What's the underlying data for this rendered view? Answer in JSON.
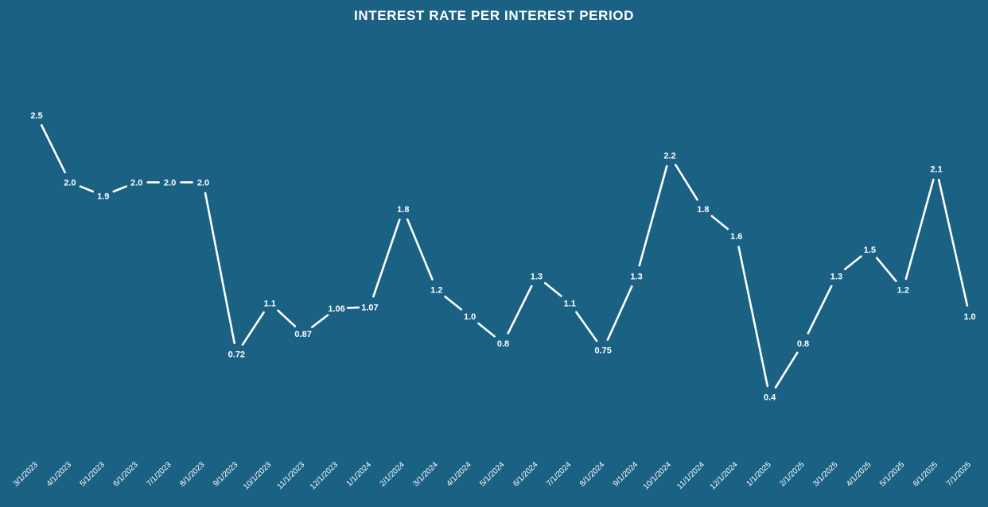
{
  "chart_data": {
    "type": "line",
    "title": "INTEREST RATE PER INTEREST PERIOD",
    "xlabel": "",
    "ylabel": "",
    "grid": false,
    "legend": "none",
    "x": [
      "3/1/2023",
      "4/1/2023",
      "5/1/2023",
      "6/1/2023",
      "7/1/2023",
      "8/1/2023",
      "9/1/2023",
      "10/1/2023",
      "11/1/2023",
      "12/1/2023",
      "1/1/2024",
      "2/1/2024",
      "3/1/2024",
      "4/1/2024",
      "5/1/2024",
      "6/1/2024",
      "7/1/2024",
      "8/1/2024",
      "9/1/2024",
      "10/1/2024",
      "11/1/2024",
      "12/1/2024",
      "1/1/2025",
      "2/1/2025",
      "3/1/2025",
      "4/1/2025",
      "5/1/2025",
      "6/1/2025",
      "7/1/2025"
    ],
    "values": [
      2.5,
      2.0,
      1.9,
      2.0,
      2.0,
      2.0,
      0.72,
      1.1,
      0.87,
      1.06,
      1.07,
      1.8,
      1.2,
      1.0,
      0.8,
      1.3,
      1.1,
      0.75,
      1.3,
      2.2,
      1.8,
      1.6,
      0.4,
      0.8,
      1.3,
      1.5,
      1.2,
      2.1,
      1.0
    ],
    "labels": [
      "2.5",
      "2.0",
      "1.9",
      "2.0",
      "2.0",
      "2.0",
      "0.72",
      "1.1",
      "0.87",
      "1.06",
      "1.07",
      "1.8",
      "1.2",
      "1.0",
      "0.8",
      "1.3",
      "1.1",
      "0.75",
      "1.3",
      "2.2",
      "1.8",
      "1.6",
      "0.4",
      "0.8",
      "1.3",
      "1.5",
      "1.2",
      "2.1",
      "1.0"
    ],
    "ylim": [
      0,
      2.5
    ],
    "colors": {
      "background": "#1a6184",
      "line": "#ffffff",
      "text": "#ffffff"
    }
  }
}
